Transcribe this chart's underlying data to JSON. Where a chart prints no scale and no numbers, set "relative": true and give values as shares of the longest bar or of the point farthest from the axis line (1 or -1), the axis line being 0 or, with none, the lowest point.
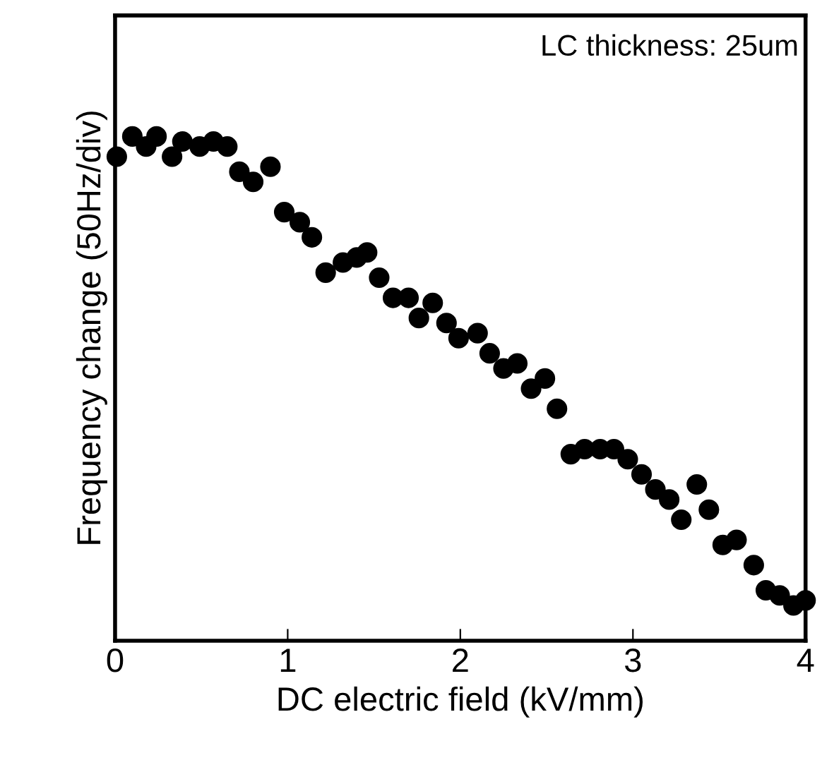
{
  "chart_data": {
    "type": "scatter",
    "relative": true,
    "xlabel": "DC electric field (kV/mm)",
    "ylabel": "Frequency change (50Hz/div)",
    "annotations": [
      "LC thickness: 25um"
    ],
    "xlim": [
      0,
      4
    ],
    "xticks": [
      0,
      1,
      2,
      3,
      4
    ],
    "marker": "circle",
    "grid": false,
    "tick_labels": "x",
    "series": [
      {
        "color": "#000000",
        "x": [
          0.01,
          0.1,
          0.18,
          0.24,
          0.33,
          0.39,
          0.49,
          0.57,
          0.65,
          0.72,
          0.8,
          0.9,
          0.98,
          1.07,
          1.14,
          1.22,
          1.32,
          1.4,
          1.46,
          1.53,
          1.61,
          1.7,
          1.76,
          1.84,
          1.92,
          1.99,
          2.1,
          2.17,
          2.25,
          2.33,
          2.41,
          2.49,
          2.56,
          2.64,
          2.72,
          2.81,
          2.89,
          2.97,
          3.05,
          3.13,
          3.21,
          3.28,
          3.37,
          3.44,
          3.52,
          3.6,
          3.7,
          3.77,
          3.85,
          3.93,
          4.0
        ],
        "values": [
          0.96,
          1.0,
          0.98,
          1.0,
          0.96,
          0.99,
          0.98,
          0.99,
          0.98,
          0.93,
          0.91,
          0.94,
          0.85,
          0.83,
          0.8,
          0.73,
          0.75,
          0.76,
          0.77,
          0.72,
          0.68,
          0.68,
          0.64,
          0.67,
          0.63,
          0.6,
          0.61,
          0.57,
          0.54,
          0.55,
          0.5,
          0.52,
          0.46,
          0.37,
          0.38,
          0.38,
          0.38,
          0.36,
          0.33,
          0.3,
          0.28,
          0.24,
          0.31,
          0.26,
          0.19,
          0.2,
          0.15,
          0.1,
          0.09,
          0.07,
          0.08
        ]
      }
    ]
  }
}
